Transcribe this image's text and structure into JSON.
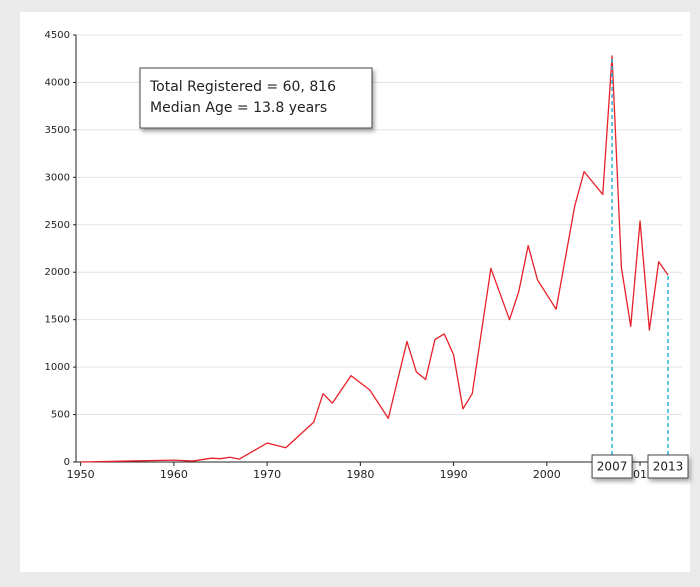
{
  "chart_data": {
    "type": "line",
    "annotation": [
      "Total Registered = 60, 816",
      "Median Age = 13.8 years"
    ],
    "x": [
      1950,
      1955,
      1960,
      1962,
      1964,
      1965,
      1966,
      1967,
      1970,
      1972,
      1975,
      1976,
      1977,
      1979,
      1981,
      1983,
      1985,
      1986,
      1987,
      1988,
      1989,
      1990,
      1991,
      1992,
      1994,
      1996,
      1997,
      1998,
      1999,
      2001,
      2003,
      2004,
      2006,
      2007,
      2008,
      2009,
      2010,
      2011,
      2012,
      2013
    ],
    "series": [
      {
        "color": "#e8202a",
        "values": [
          0,
          10,
          20,
          10,
          40,
          35,
          50,
          30,
          200,
          150,
          420,
          720,
          620,
          910,
          760,
          460,
          1270,
          950,
          870,
          1290,
          1350,
          1130,
          560,
          720,
          2040,
          1500,
          1800,
          2280,
          1920,
          1610,
          2700,
          3060,
          2820,
          4280,
          2050,
          1430,
          2540,
          1390,
          2110,
          1970
        ]
      }
    ],
    "markers": [
      2007,
      2013
    ],
    "marker_color": "#29b6d8",
    "xlim": [
      1949.5,
      2014.5
    ],
    "xticks": [
      1950,
      1960,
      1970,
      1980,
      1990,
      2000,
      2010
    ],
    "ylim": [
      0,
      4500
    ],
    "yticks": [
      0,
      500,
      1000,
      1500,
      2000,
      2500,
      3000,
      3500,
      4000,
      4500
    ],
    "grid": true
  }
}
